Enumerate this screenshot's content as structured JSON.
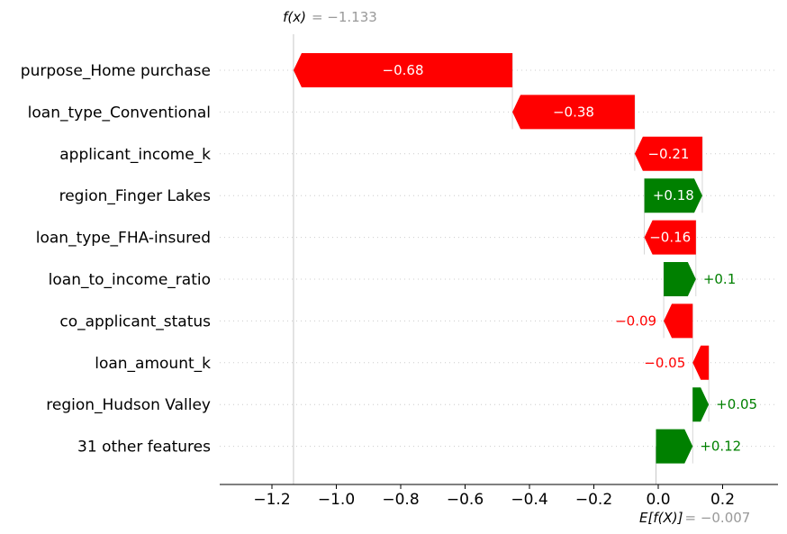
{
  "chart_data": {
    "type": "waterfall",
    "fx_label": "f(x)",
    "fx_value_text": "= −1.133",
    "ex_label": "E[f(X)]",
    "ex_value_text": "= −0.007",
    "fx_value": -1.133,
    "base_value": -0.007,
    "xlim": [
      -1.36,
      0.19
    ],
    "x_ticks": [
      -1.2,
      -1.0,
      -0.8,
      -0.6,
      -0.4,
      -0.2,
      0.0,
      0.2
    ],
    "x_tick_labels": [
      "−1.2",
      "−1.0",
      "−0.8",
      "−0.6",
      "−0.4",
      "−0.2",
      "0.0",
      "0.2"
    ],
    "features": [
      {
        "name": "purpose_Home purchase",
        "start": -0.453,
        "end": -1.133,
        "label": "−0.68",
        "label_inside": true
      },
      {
        "name": "loan_type_Conventional",
        "start": -0.073,
        "end": -0.453,
        "label": "−0.38",
        "label_inside": true
      },
      {
        "name": "applicant_income_k",
        "start": 0.137,
        "end": -0.073,
        "label": "−0.21",
        "label_inside": true
      },
      {
        "name": "region_Finger Lakes",
        "start": -0.043,
        "end": 0.137,
        "label": "+0.18",
        "label_inside": true
      },
      {
        "name": "loan_type_FHA-insured",
        "start": 0.117,
        "end": -0.043,
        "label": "−0.16",
        "label_inside": true
      },
      {
        "name": "loan_to_income_ratio",
        "start": 0.017,
        "end": 0.117,
        "label": "+0.1",
        "label_inside": false
      },
      {
        "name": "co_applicant_status",
        "start": 0.107,
        "end": 0.017,
        "label": "−0.09",
        "label_inside": false
      },
      {
        "name": "loan_amount_k",
        "start": 0.157,
        "end": 0.107,
        "label": "−0.05",
        "label_inside": false
      },
      {
        "name": "region_Hudson Valley",
        "start": 0.107,
        "end": 0.157,
        "label": "+0.05",
        "label_inside": false
      },
      {
        "name": "31 other features",
        "start": -0.007,
        "end": 0.107,
        "label": "+0.12",
        "label_inside": false
      }
    ],
    "colors": {
      "positive": "#008000",
      "negative": "#ff0000",
      "base_text": "#999999"
    }
  }
}
